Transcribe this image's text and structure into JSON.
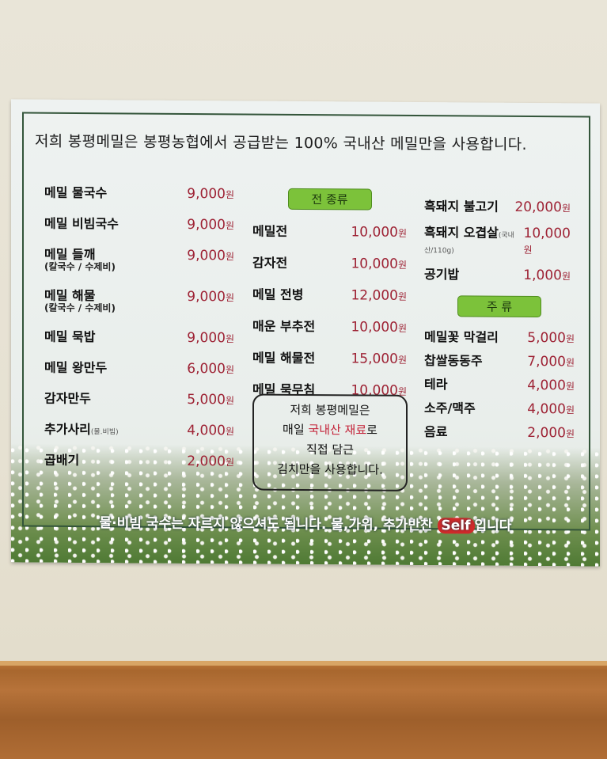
{
  "headline": "저희 봉평메밀은 봉평농협에서 공급받는 100% 국내산 메밀만을 사용합니다.",
  "currency": "원",
  "left_menu": [
    {
      "name": "메밀 물국수",
      "price": "9,000"
    },
    {
      "name": "메밀 비빔국수",
      "price": "9,000"
    },
    {
      "name": "메밀 들깨",
      "sub": "(칼국수 / 수제비)",
      "price": "9,000"
    },
    {
      "name": "메밀 해물",
      "sub": "(칼국수 / 수제비)",
      "price": "9,000"
    },
    {
      "name": "메밀 묵밥",
      "price": "9,000"
    },
    {
      "name": "메밀 왕만두",
      "price": "6,000"
    },
    {
      "name": "감자만두",
      "price": "5,000"
    },
    {
      "name": "추가사리",
      "note": "(물.비빔)",
      "price": "4,000"
    },
    {
      "name": "곱배기",
      "price": "2,000"
    }
  ],
  "jeon_section": {
    "title": "전 종류",
    "items": [
      {
        "name": "메밀전",
        "price": "10,000"
      },
      {
        "name": "감자전",
        "price": "10,000"
      },
      {
        "name": "메밀 전병",
        "price": "12,000"
      },
      {
        "name": "매운 부추전",
        "price": "10,000"
      },
      {
        "name": "메밀 해물전",
        "price": "15,000"
      },
      {
        "name": "메밀 묵무침",
        "price": "10,000"
      }
    ]
  },
  "right_menu": [
    {
      "name": "흑돼지 불고기",
      "price": "20,000"
    },
    {
      "name": "흑돼지 오겹살",
      "note": "(국내산/110g)",
      "price": "10,000"
    },
    {
      "name": "공기밥",
      "price": "1,000"
    }
  ],
  "drinks_section": {
    "title": "주 류",
    "items": [
      {
        "name": "메밀꽃 막걸리",
        "price": "5,000"
      },
      {
        "name": "찹쌀동동주",
        "price": "7,000"
      },
      {
        "name": "테라",
        "price": "4,000"
      },
      {
        "name": "소주/맥주",
        "price": "4,000"
      },
      {
        "name": "음료",
        "price": "2,000"
      }
    ]
  },
  "kimchi_box": {
    "line1": "저희 봉평메밀은",
    "line2a": "매일 ",
    "line2b": "국내산 재료",
    "line2c": "로",
    "line3": "직접 담근",
    "line4": "김치만을 사용합니다."
  },
  "footer": {
    "text": "물·비빔 국수는 자르지 않으셔도 됩니다. 물,가위, 추가반찬 ",
    "self": "Self",
    "tail": "입니다"
  },
  "colors": {
    "price": "#9e2335",
    "badge": "#7cc23a",
    "frame": "#33553a"
  }
}
